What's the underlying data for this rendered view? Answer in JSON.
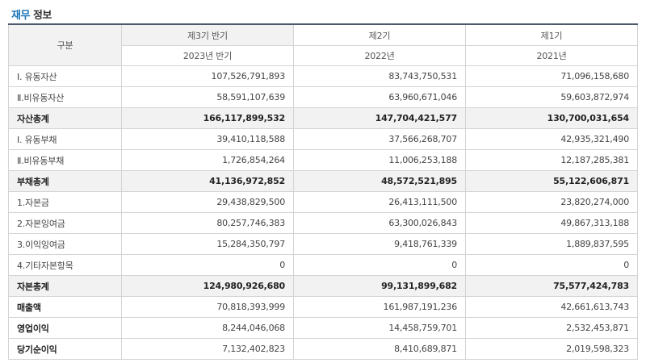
{
  "section": {
    "title_accent": "재무",
    "title_rest": "정보"
  },
  "header": {
    "row_label": "구분",
    "periods": [
      "제3기 반기",
      "제2기",
      "제1기"
    ],
    "dates": [
      "2023년 반기",
      "2022년",
      "2021년"
    ]
  },
  "rows": [
    {
      "label": "Ⅰ. 유동자산",
      "values": [
        "107,526,791,893",
        "83,743,750,531",
        "71,096,158,680"
      ]
    },
    {
      "label": "Ⅱ.비유동자산",
      "values": [
        "58,591,107,639",
        "63,960,671,046",
        "59,603,872,974"
      ]
    },
    {
      "label": "자산총계",
      "values": [
        "166,117,899,532",
        "147,704,421,577",
        "130,700,031,654"
      ]
    },
    {
      "label": "Ⅰ. 유동부채",
      "values": [
        "39,410,118,588",
        "37,566,268,707",
        "42,935,321,490"
      ]
    },
    {
      "label": "Ⅱ.비유동부채",
      "values": [
        "1,726,854,264",
        "11,006,253,188",
        "12,187,285,381"
      ]
    },
    {
      "label": "부채총계",
      "values": [
        "41,136,972,852",
        "48,572,521,895",
        "55,122,606,871"
      ]
    },
    {
      "label": "1.자본금",
      "values": [
        "29,438,829,500",
        "26,413,111,500",
        "23,820,274,000"
      ]
    },
    {
      "label": "2.자본잉여금",
      "values": [
        "80,257,746,383",
        "63,300,026,843",
        "49,867,313,188"
      ]
    },
    {
      "label": "3.이익잉여금",
      "values": [
        "15,284,350,797",
        "9,418,761,339",
        "1,889,837,595"
      ]
    },
    {
      "label": "4.기타자본항목",
      "values": [
        "0",
        "0",
        "0"
      ]
    },
    {
      "label": "자본총계",
      "values": [
        "124,980,926,680",
        "99,131,899,682",
        "75,577,424,783"
      ]
    },
    {
      "label": "매출액",
      "values": [
        "70,818,393,999",
        "161,987,191,236",
        "42,661,613,743"
      ]
    },
    {
      "label": "영업이익",
      "values": [
        "8,244,046,068",
        "14,458,759,701",
        "2,532,453,871"
      ]
    },
    {
      "label": "당기순이익",
      "values": [
        "7,132,402,823",
        "8,410,689,871",
        "2,019,598,323"
      ]
    }
  ]
}
